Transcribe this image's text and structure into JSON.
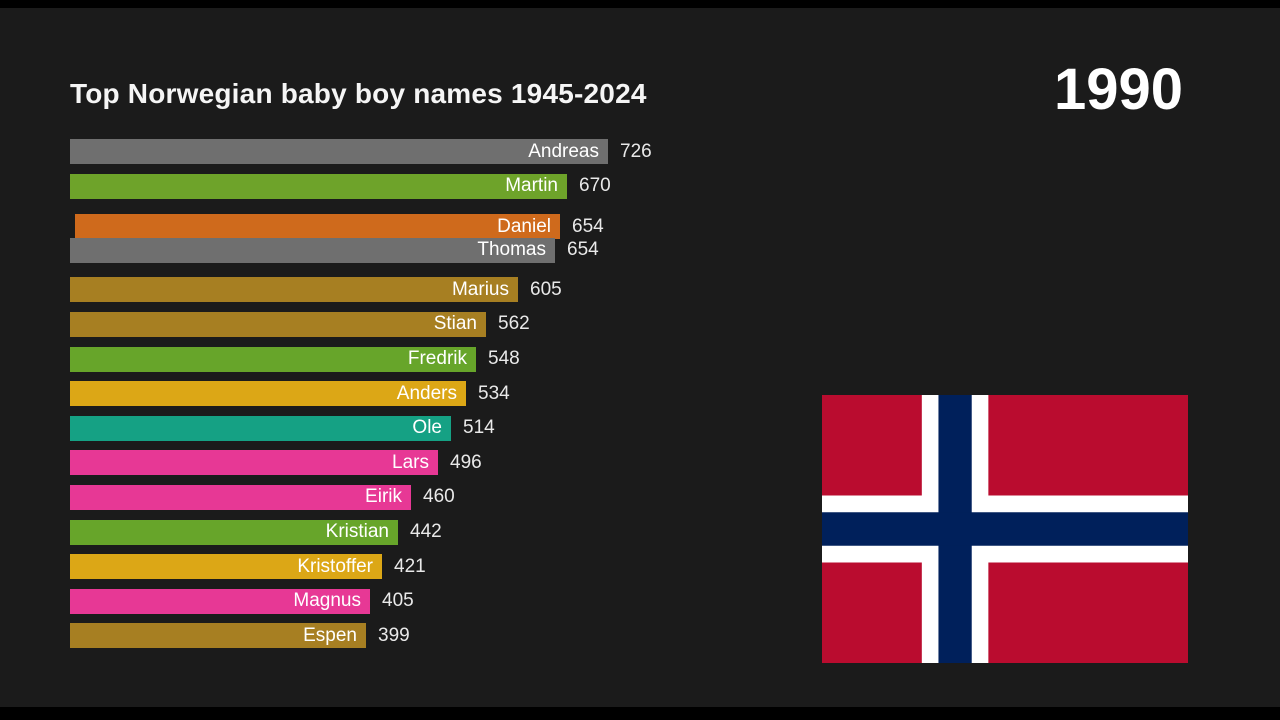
{
  "page": {
    "background_color": "#1b1b1b",
    "letterbox_color": "#000000"
  },
  "header": {
    "title": "Top Norwegian baby boy names 1945-2024",
    "year_label": "1990"
  },
  "chart_data": {
    "type": "bar",
    "orientation": "horizontal",
    "title": "Top Norwegian baby boy names 1945-2024",
    "year_label": "1990",
    "xlim": [
      0,
      726
    ],
    "grid": false,
    "legend": false,
    "bars": [
      {
        "name": "Andreas",
        "value": 726,
        "color": "#6f6f6f"
      },
      {
        "name": "Martin",
        "value": 670,
        "color": "#6ea32a"
      },
      {
        "name": "Daniel",
        "value": 654,
        "color": "#cf6a1c"
      },
      {
        "name": "Thomas",
        "value": 654,
        "color": "#6f6f6f"
      },
      {
        "name": "Marius",
        "value": 605,
        "color": "#a77f22"
      },
      {
        "name": "Stian",
        "value": 562,
        "color": "#a77f22"
      },
      {
        "name": "Fredrik",
        "value": 548,
        "color": "#67a52a"
      },
      {
        "name": "Anders",
        "value": 534,
        "color": "#dca716"
      },
      {
        "name": "Ole",
        "value": 514,
        "color": "#15a184"
      },
      {
        "name": "Lars",
        "value": 496,
        "color": "#e73895"
      },
      {
        "name": "Eirik",
        "value": 460,
        "color": "#e73895"
      },
      {
        "name": "Kristian",
        "value": 442,
        "color": "#67a52a"
      },
      {
        "name": "Kristoffer",
        "value": 421,
        "color": "#dca716"
      },
      {
        "name": "Magnus",
        "value": 405,
        "color": "#e73895"
      },
      {
        "name": "Espen",
        "value": 399,
        "color": "#a77f22"
      }
    ]
  },
  "flag": {
    "country": "Norway",
    "red": "#ba0c2f",
    "white": "#ffffff",
    "blue": "#00205b"
  }
}
